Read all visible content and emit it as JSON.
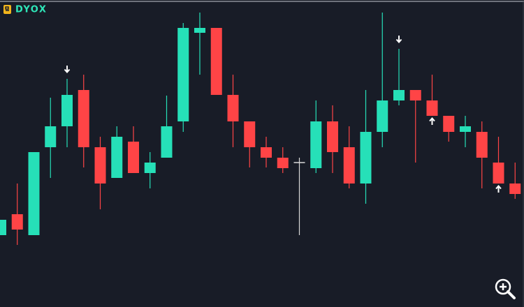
{
  "brand": "DYOX",
  "chart_data": {
    "type": "candlestick",
    "open": [
      103,
      133,
      103,
      229,
      259,
      311,
      229,
      185,
      237,
      192,
      214,
      266,
      393,
      400,
      304,
      266,
      229,
      214,
      207,
      199,
      266,
      229,
      177,
      251,
      296,
      311,
      296,
      274,
      251,
      251,
      207,
      177
    ],
    "high": [
      125,
      177,
      222,
      300,
      327,
      333,
      244,
      259,
      259,
      222,
      303,
      407,
      422,
      400,
      333,
      266,
      244,
      229,
      214,
      296,
      289,
      259,
      311,
      422,
      370,
      311,
      333,
      274,
      274,
      266,
      244,
      207
    ],
    "low": [
      103,
      89,
      103,
      185,
      229,
      200,
      140,
      185,
      192,
      170,
      214,
      251,
      333,
      304,
      229,
      200,
      200,
      192,
      103,
      192,
      192,
      170,
      148,
      229,
      289,
      207,
      274,
      237,
      229,
      170,
      177,
      155
    ],
    "close": [
      125,
      111,
      222,
      259,
      304,
      229,
      177,
      244,
      192,
      207,
      259,
      400,
      400,
      304,
      266,
      229,
      214,
      199,
      207,
      266,
      222,
      177,
      251,
      296,
      311,
      296,
      274,
      251,
      259,
      214,
      177,
      162
    ],
    "ylim": [
      0,
      440
    ],
    "up_color": "#26e0b8",
    "down_color": "#ff4446",
    "doji_color": "#d8d8d8",
    "sell_signals": [
      4,
      24
    ],
    "buy_signals": [
      26,
      30
    ]
  }
}
